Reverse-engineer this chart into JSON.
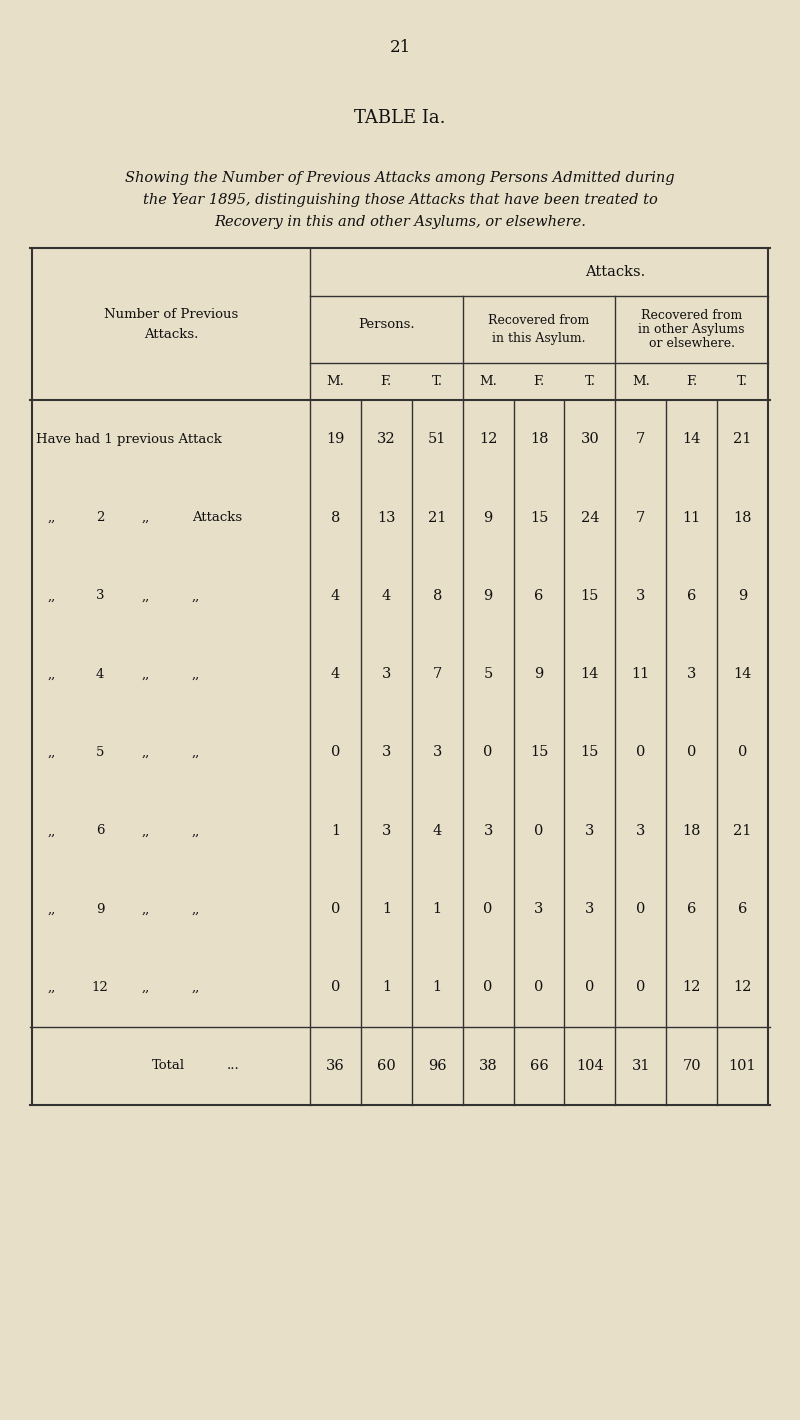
{
  "page_number": "21",
  "title": "TABLE Ia.",
  "subtitle": [
    "Showing the Number of Previous Attacks among Persons Admitted during",
    "the Year 1895, distinguishing those Attacks that have been treated to",
    "Recovery in this and other Asylums, or elsewhere."
  ],
  "bg_color": "#e8dfc8",
  "text_color": "#111111",
  "data": [
    [
      19,
      32,
      51,
      12,
      18,
      30,
      7,
      14,
      21
    ],
    [
      8,
      13,
      21,
      9,
      15,
      24,
      7,
      11,
      18
    ],
    [
      4,
      4,
      8,
      9,
      6,
      15,
      3,
      6,
      9
    ],
    [
      4,
      3,
      7,
      5,
      9,
      14,
      11,
      3,
      14
    ],
    [
      0,
      3,
      3,
      0,
      15,
      15,
      0,
      0,
      0
    ],
    [
      1,
      3,
      4,
      3,
      0,
      3,
      3,
      18,
      21
    ],
    [
      0,
      1,
      1,
      0,
      3,
      3,
      0,
      6,
      6
    ],
    [
      0,
      1,
      1,
      0,
      0,
      0,
      0,
      12,
      12
    ]
  ],
  "totals": [
    36,
    60,
    96,
    38,
    66,
    104,
    31,
    70,
    101
  ],
  "row_numbers": [
    "1",
    "2",
    "3",
    "4",
    "5",
    "6",
    "9",
    "12"
  ],
  "row_last": [
    "Attack",
    "Attacks",
    ",,",
    ",,",
    ",,",
    ",,",
    ",,",
    ",,"
  ]
}
